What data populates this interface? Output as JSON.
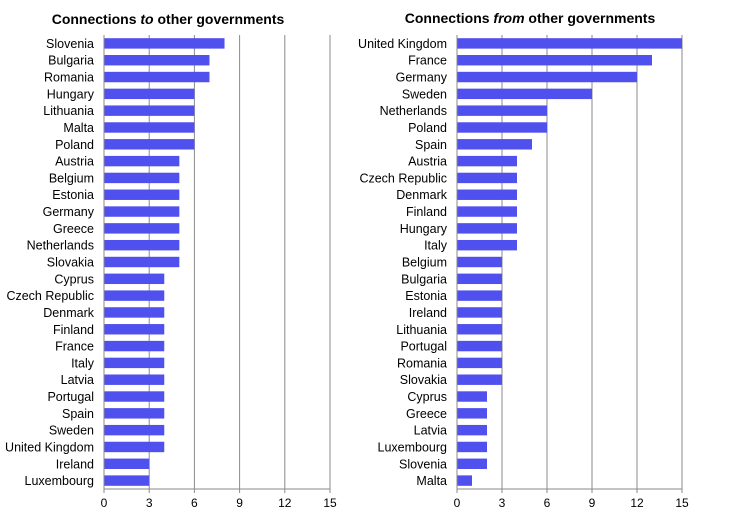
{
  "chart_data": [
    {
      "type": "bar",
      "orientation": "horizontal",
      "title_parts": [
        "Connections ",
        "to",
        " other governments"
      ],
      "categories": [
        "Slovenia",
        "Bulgaria",
        "Romania",
        "Hungary",
        "Lithuania",
        "Malta",
        "Poland",
        "Austria",
        "Belgium",
        "Estonia",
        "Germany",
        "Greece",
        "Netherlands",
        "Slovakia",
        "Cyprus",
        "Czech Republic",
        "Denmark",
        "Finland",
        "France",
        "Italy",
        "Latvia",
        "Portugal",
        "Spain",
        "Sweden",
        "United Kingdom",
        "Ireland",
        "Luxembourg"
      ],
      "values": [
        8,
        7,
        7,
        6,
        6,
        6,
        6,
        5,
        5,
        5,
        5,
        5,
        5,
        5,
        4,
        4,
        4,
        4,
        4,
        4,
        4,
        4,
        4,
        4,
        4,
        3,
        3
      ],
      "xlim": [
        0,
        15
      ],
      "xticks": [
        0,
        3,
        6,
        9,
        12,
        15
      ],
      "grid": true,
      "bar_color": "#5050ee"
    },
    {
      "type": "bar",
      "orientation": "horizontal",
      "title_parts": [
        "Connections ",
        "from",
        " other governments"
      ],
      "categories": [
        "United Kingdom",
        "France",
        "Germany",
        "Sweden",
        "Netherlands",
        "Poland",
        "Spain",
        "Austria",
        "Czech Republic",
        "Denmark",
        "Finland",
        "Hungary",
        "Italy",
        "Belgium",
        "Bulgaria",
        "Estonia",
        "Ireland",
        "Lithuania",
        "Portugal",
        "Romania",
        "Slovakia",
        "Cyprus",
        "Greece",
        "Latvia",
        "Luxembourg",
        "Slovenia",
        "Malta"
      ],
      "values": [
        15,
        13,
        12,
        9,
        6,
        6,
        5,
        4,
        4,
        4,
        4,
        4,
        4,
        3,
        3,
        3,
        3,
        3,
        3,
        3,
        3,
        2,
        2,
        2,
        2,
        2,
        1
      ],
      "xlim": [
        0,
        15
      ],
      "xticks": [
        0,
        3,
        6,
        9,
        12,
        15
      ],
      "grid": true,
      "bar_color": "#5050ee"
    }
  ]
}
